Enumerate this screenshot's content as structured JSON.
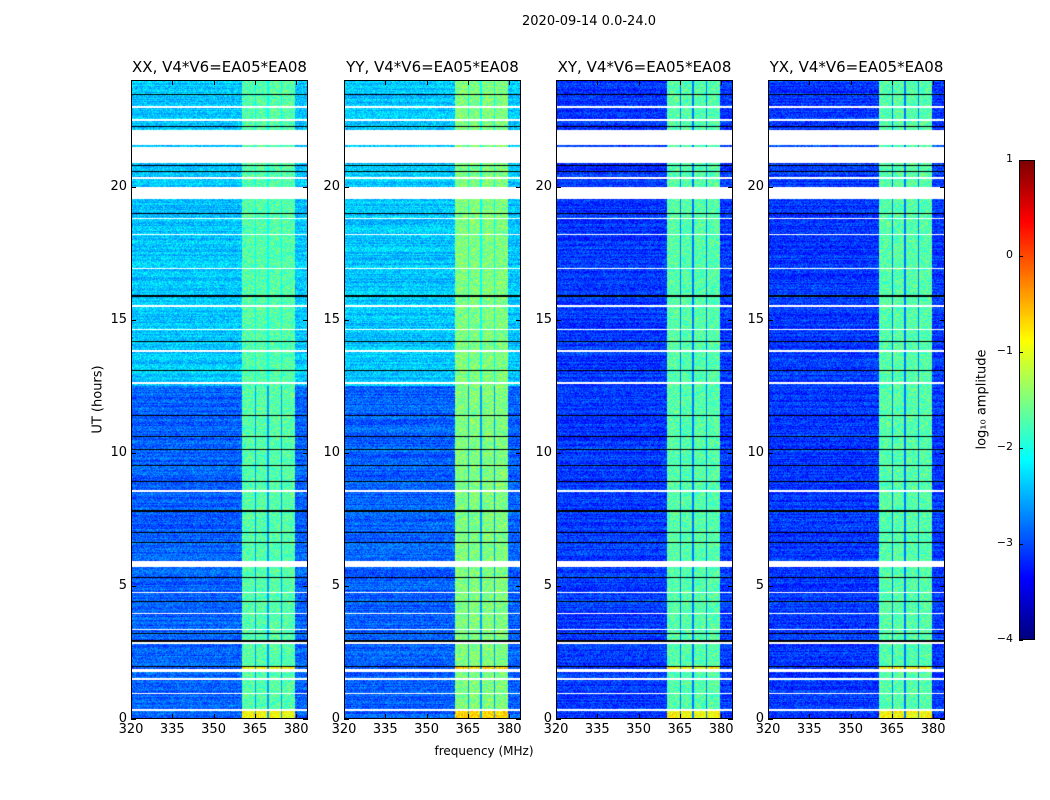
{
  "chart_data": {
    "type": "heatmap",
    "title": "2020-09-14 0.0-24.0",
    "xlabel": "frequency (MHz)",
    "ylabel": "UT (hours)",
    "xlim": [
      320,
      384.3
    ],
    "ylim": [
      0,
      24
    ],
    "xticks": [
      320,
      335,
      350,
      365,
      380
    ],
    "xtick_labels": [
      "320",
      "335",
      "350",
      "365",
      "380"
    ],
    "yticks": [
      0,
      5,
      10,
      15,
      20
    ],
    "ytick_labels": [
      "0",
      "5",
      "10",
      "15",
      "20"
    ],
    "panels": [
      {
        "title": "XX, V4*V6=EA05*EA08",
        "background_log_amp_early": -2.9,
        "background_log_amp_late": -2.4,
        "rfi_log_amp": -1.7
      },
      {
        "title": "YY, V4*V6=EA05*EA08",
        "background_log_amp_early": -2.9,
        "background_log_amp_late": -2.4,
        "rfi_log_amp": -1.5
      },
      {
        "title": "XY, V4*V6=EA05*EA08",
        "background_log_amp_early": -3.1,
        "background_log_amp_late": -3.1,
        "rfi_log_amp": -1.7
      },
      {
        "title": "YX, V4*V6=EA05*EA08",
        "background_log_amp_early": -3.1,
        "background_log_amp_late": -3.1,
        "rfi_log_amp": -1.7
      }
    ],
    "rfi_band_mhz": [
      360.6,
      380
    ],
    "rfi_subband_edges_mhz": [
      365.4,
      370,
      375
    ],
    "flagged_intervals_hours": [
      [
        0.25,
        0.35
      ],
      [
        0.9,
        0.95
      ],
      [
        1.45,
        1.5
      ],
      [
        1.75,
        1.85
      ],
      [
        2.8,
        2.85
      ],
      [
        3.3,
        3.35
      ],
      [
        3.9,
        3.95
      ],
      [
        4.7,
        4.75
      ],
      [
        5.7,
        5.9
      ],
      [
        8.5,
        8.6
      ],
      [
        12.6,
        12.65
      ],
      [
        13.8,
        13.85
      ],
      [
        14.6,
        14.65
      ],
      [
        15.5,
        15.55
      ],
      [
        16.9,
        16.95
      ],
      [
        18.2,
        18.25
      ],
      [
        18.8,
        18.85
      ],
      [
        19.55,
        20.0
      ],
      [
        20.3,
        20.4
      ],
      [
        20.9,
        21.5
      ],
      [
        21.6,
        22.15
      ],
      [
        22.5,
        22.55
      ],
      [
        23.0,
        23.05
      ]
    ],
    "dropout_lines_hours": [
      1.95,
      2.9,
      3.2,
      4.4,
      5.3,
      6.6,
      7.0,
      7.8,
      8.9,
      9.5,
      10.1,
      10.6,
      11.4,
      13.1,
      14.2,
      15.9,
      19.0,
      20.6,
      20.8,
      22.3,
      23.5
    ],
    "colorbar": {
      "label": "log₁₀ amplitude",
      "range": [
        -4,
        1
      ],
      "ticks": [
        1,
        0,
        -1,
        -2,
        -3,
        -4
      ],
      "tick_labels": [
        "1",
        "0",
        "−1",
        "−2",
        "−3",
        "−4"
      ],
      "colormap": "jet"
    }
  }
}
